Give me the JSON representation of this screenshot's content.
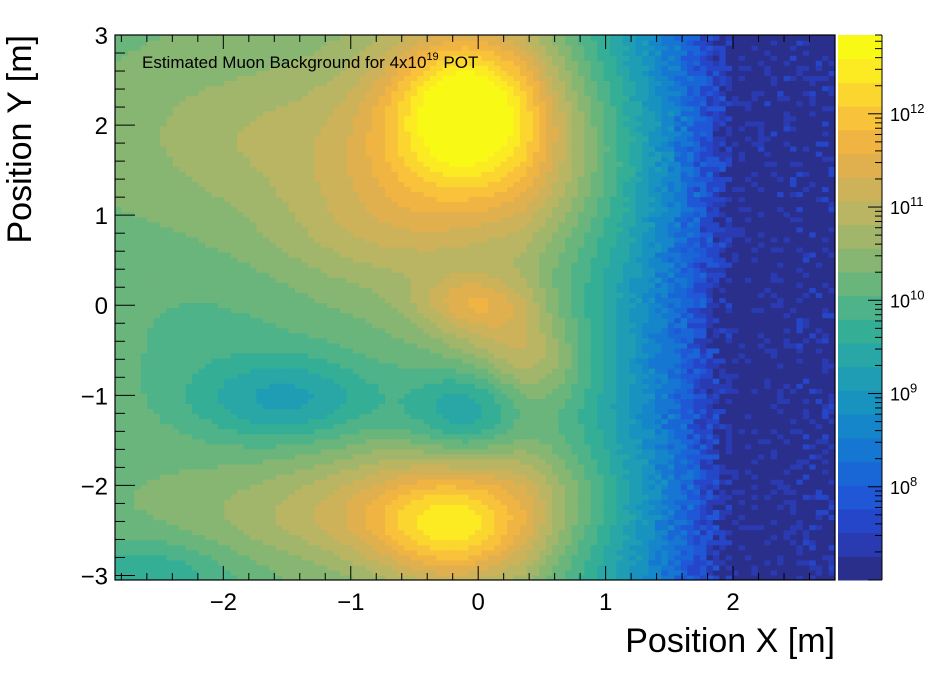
{
  "chart_data": {
    "type": "heatmap",
    "title": {
      "prefix": "Estimated Muon Background for 4x10",
      "superscript": "19",
      "suffix": " POT"
    },
    "xlabel": "Position X [m]",
    "ylabel": "Position Y [m]",
    "xlim": [
      -2.85,
      2.8
    ],
    "ylim": [
      -3.05,
      3.0
    ],
    "x_ticks": [
      -2,
      -1,
      0,
      1,
      2
    ],
    "x_tick_labels": [
      "−2",
      "−1",
      "0",
      "1",
      "2"
    ],
    "y_ticks": [
      -3,
      -2,
      -1,
      0,
      1,
      2,
      3
    ],
    "y_tick_labels": [
      "−3",
      "−2",
      "−1",
      "0",
      "1",
      "2",
      "3"
    ],
    "colorbar": {
      "scale": "log",
      "range": [
        10000000,
        7000000000000
      ],
      "labels": [
        {
          "value": 100000000,
          "base": "10",
          "exp": "8"
        },
        {
          "value": 1000000000,
          "base": "10",
          "exp": "9"
        },
        {
          "value": 10000000000,
          "base": "10",
          "exp": "10"
        },
        {
          "value": 100000000000,
          "base": "10",
          "exp": "11"
        },
        {
          "value": 1000000000000,
          "base": "10",
          "exp": "12"
        }
      ],
      "palette": [
        "#2a2f8c",
        "#2a3ab0",
        "#2546c8",
        "#1f57d6",
        "#1967d6",
        "#1677d2",
        "#1486c9",
        "#1893c0",
        "#1f9db5",
        "#28a7a6",
        "#35ae96",
        "#4eb388",
        "#6ab57c",
        "#87b672",
        "#a1b66a",
        "#b9b563",
        "#cdb25a",
        "#e0b04f",
        "#f0b443",
        "#f8c33a",
        "#fbd62e",
        "#fcea22",
        "#f9f916"
      ]
    },
    "grid": false,
    "legend": "none",
    "features": [
      {
        "label": "top hotspot",
        "x": -0.1,
        "y": 2.3,
        "log10_value": 12.7
      },
      {
        "label": "bottom hotspot",
        "x": -0.2,
        "y": -2.55,
        "log10_value": 12.1
      },
      {
        "label": "center spot",
        "x": -0.05,
        "y": 0.05,
        "log10_value": 11.9
      },
      {
        "label": "left cool lobe",
        "x": -1.5,
        "y": -1.05,
        "log10_value": 9.7
      },
      {
        "label": "center cool lobe",
        "x": -0.1,
        "y": -1.2,
        "log10_value": 9.8
      }
    ]
  }
}
